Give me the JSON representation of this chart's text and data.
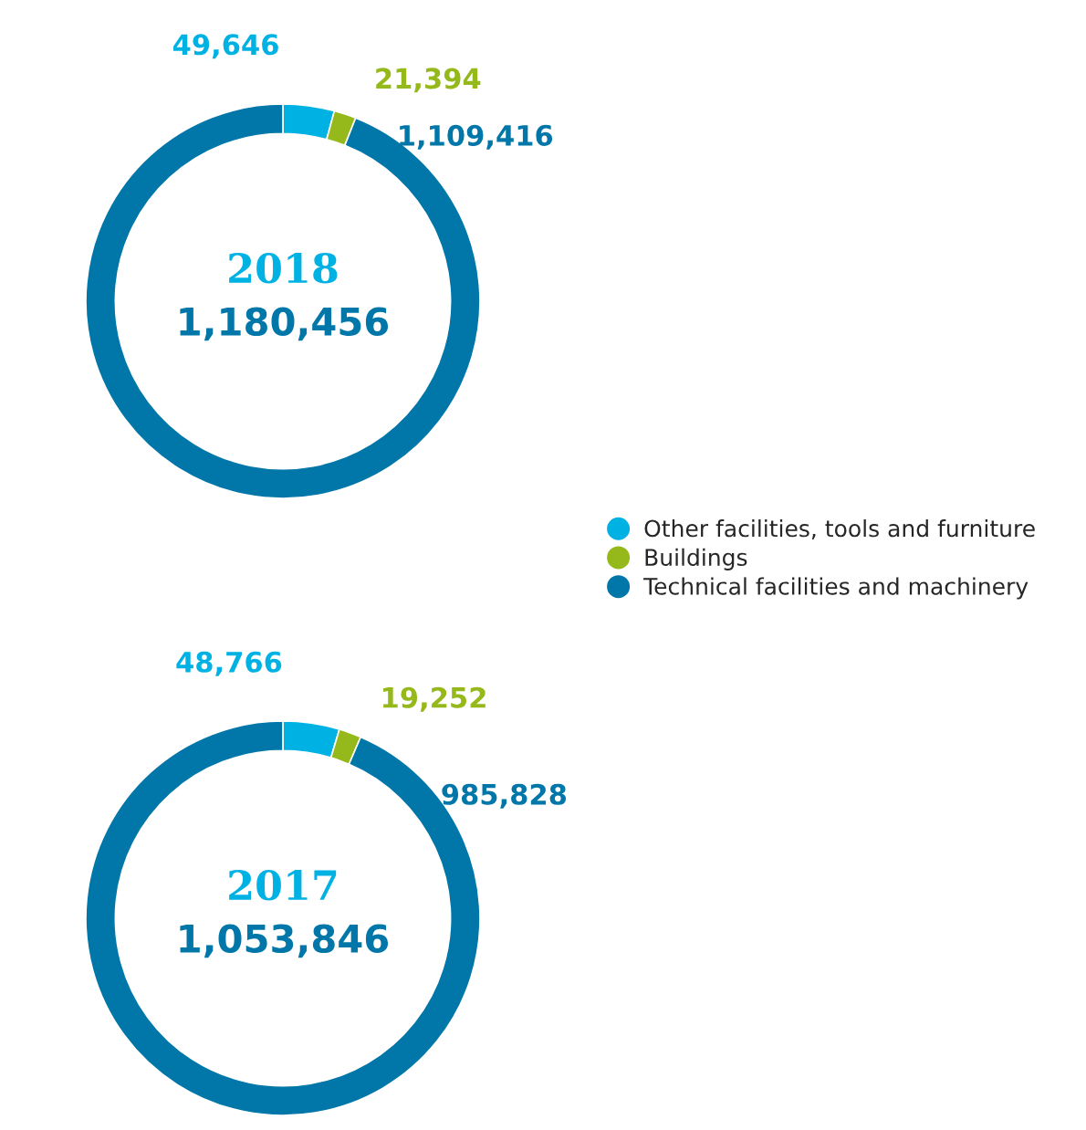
{
  "chart_data": [
    {
      "type": "donut",
      "categories": [
        "Other facilities, tools and furniture",
        "Buildings",
        "Technical facilities and machinery"
      ],
      "values": [
        49646,
        21394,
        1109416
      ],
      "colors": [
        "#00b2e3",
        "#95b81a",
        "#0077a8"
      ],
      "value_labels": [
        "49,646",
        "21,394",
        "1,109,416"
      ],
      "annotations": [
        "2018",
        "1,180,456"
      ],
      "legend": "bottom right"
    },
    {
      "type": "donut",
      "categories": [
        null,
        null,
        null
      ],
      "values": [
        48766,
        19252,
        985828
      ],
      "colors": [
        "#00b2e3",
        "#95b81a",
        "#0077a8"
      ],
      "value_labels": [
        "48,766",
        "19,252",
        "985,828"
      ],
      "annotations": [
        "2017",
        "1,053,846"
      ],
      "legend": false
    }
  ]
}
